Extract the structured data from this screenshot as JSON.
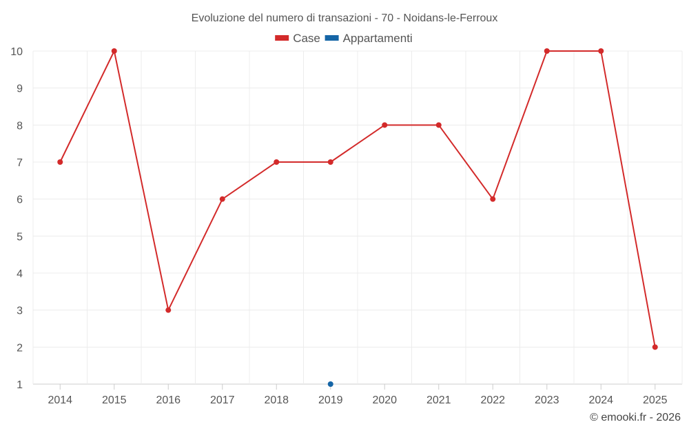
{
  "chart_data": {
    "type": "line",
    "title": "Evoluzione del numero di transazioni - 70 - Noidans-le-Ferroux",
    "categories": [
      "2014",
      "2015",
      "2016",
      "2017",
      "2018",
      "2019",
      "2020",
      "2021",
      "2022",
      "2023",
      "2024",
      "2025"
    ],
    "ylim": [
      1,
      10
    ],
    "yticks": [
      1,
      2,
      3,
      4,
      5,
      6,
      7,
      8,
      9,
      10
    ],
    "grid": true,
    "legend_position": "top-center",
    "series": [
      {
        "name": "Case",
        "color": "#d32a2a",
        "values": [
          7,
          10,
          3,
          6,
          7,
          7,
          8,
          8,
          6,
          10,
          10,
          2
        ]
      },
      {
        "name": "Appartamenti",
        "color": "#1565a6",
        "values": [
          null,
          null,
          null,
          null,
          null,
          1,
          null,
          null,
          null,
          null,
          null,
          null
        ]
      }
    ]
  },
  "credit": "© emooki.fr - 2026"
}
